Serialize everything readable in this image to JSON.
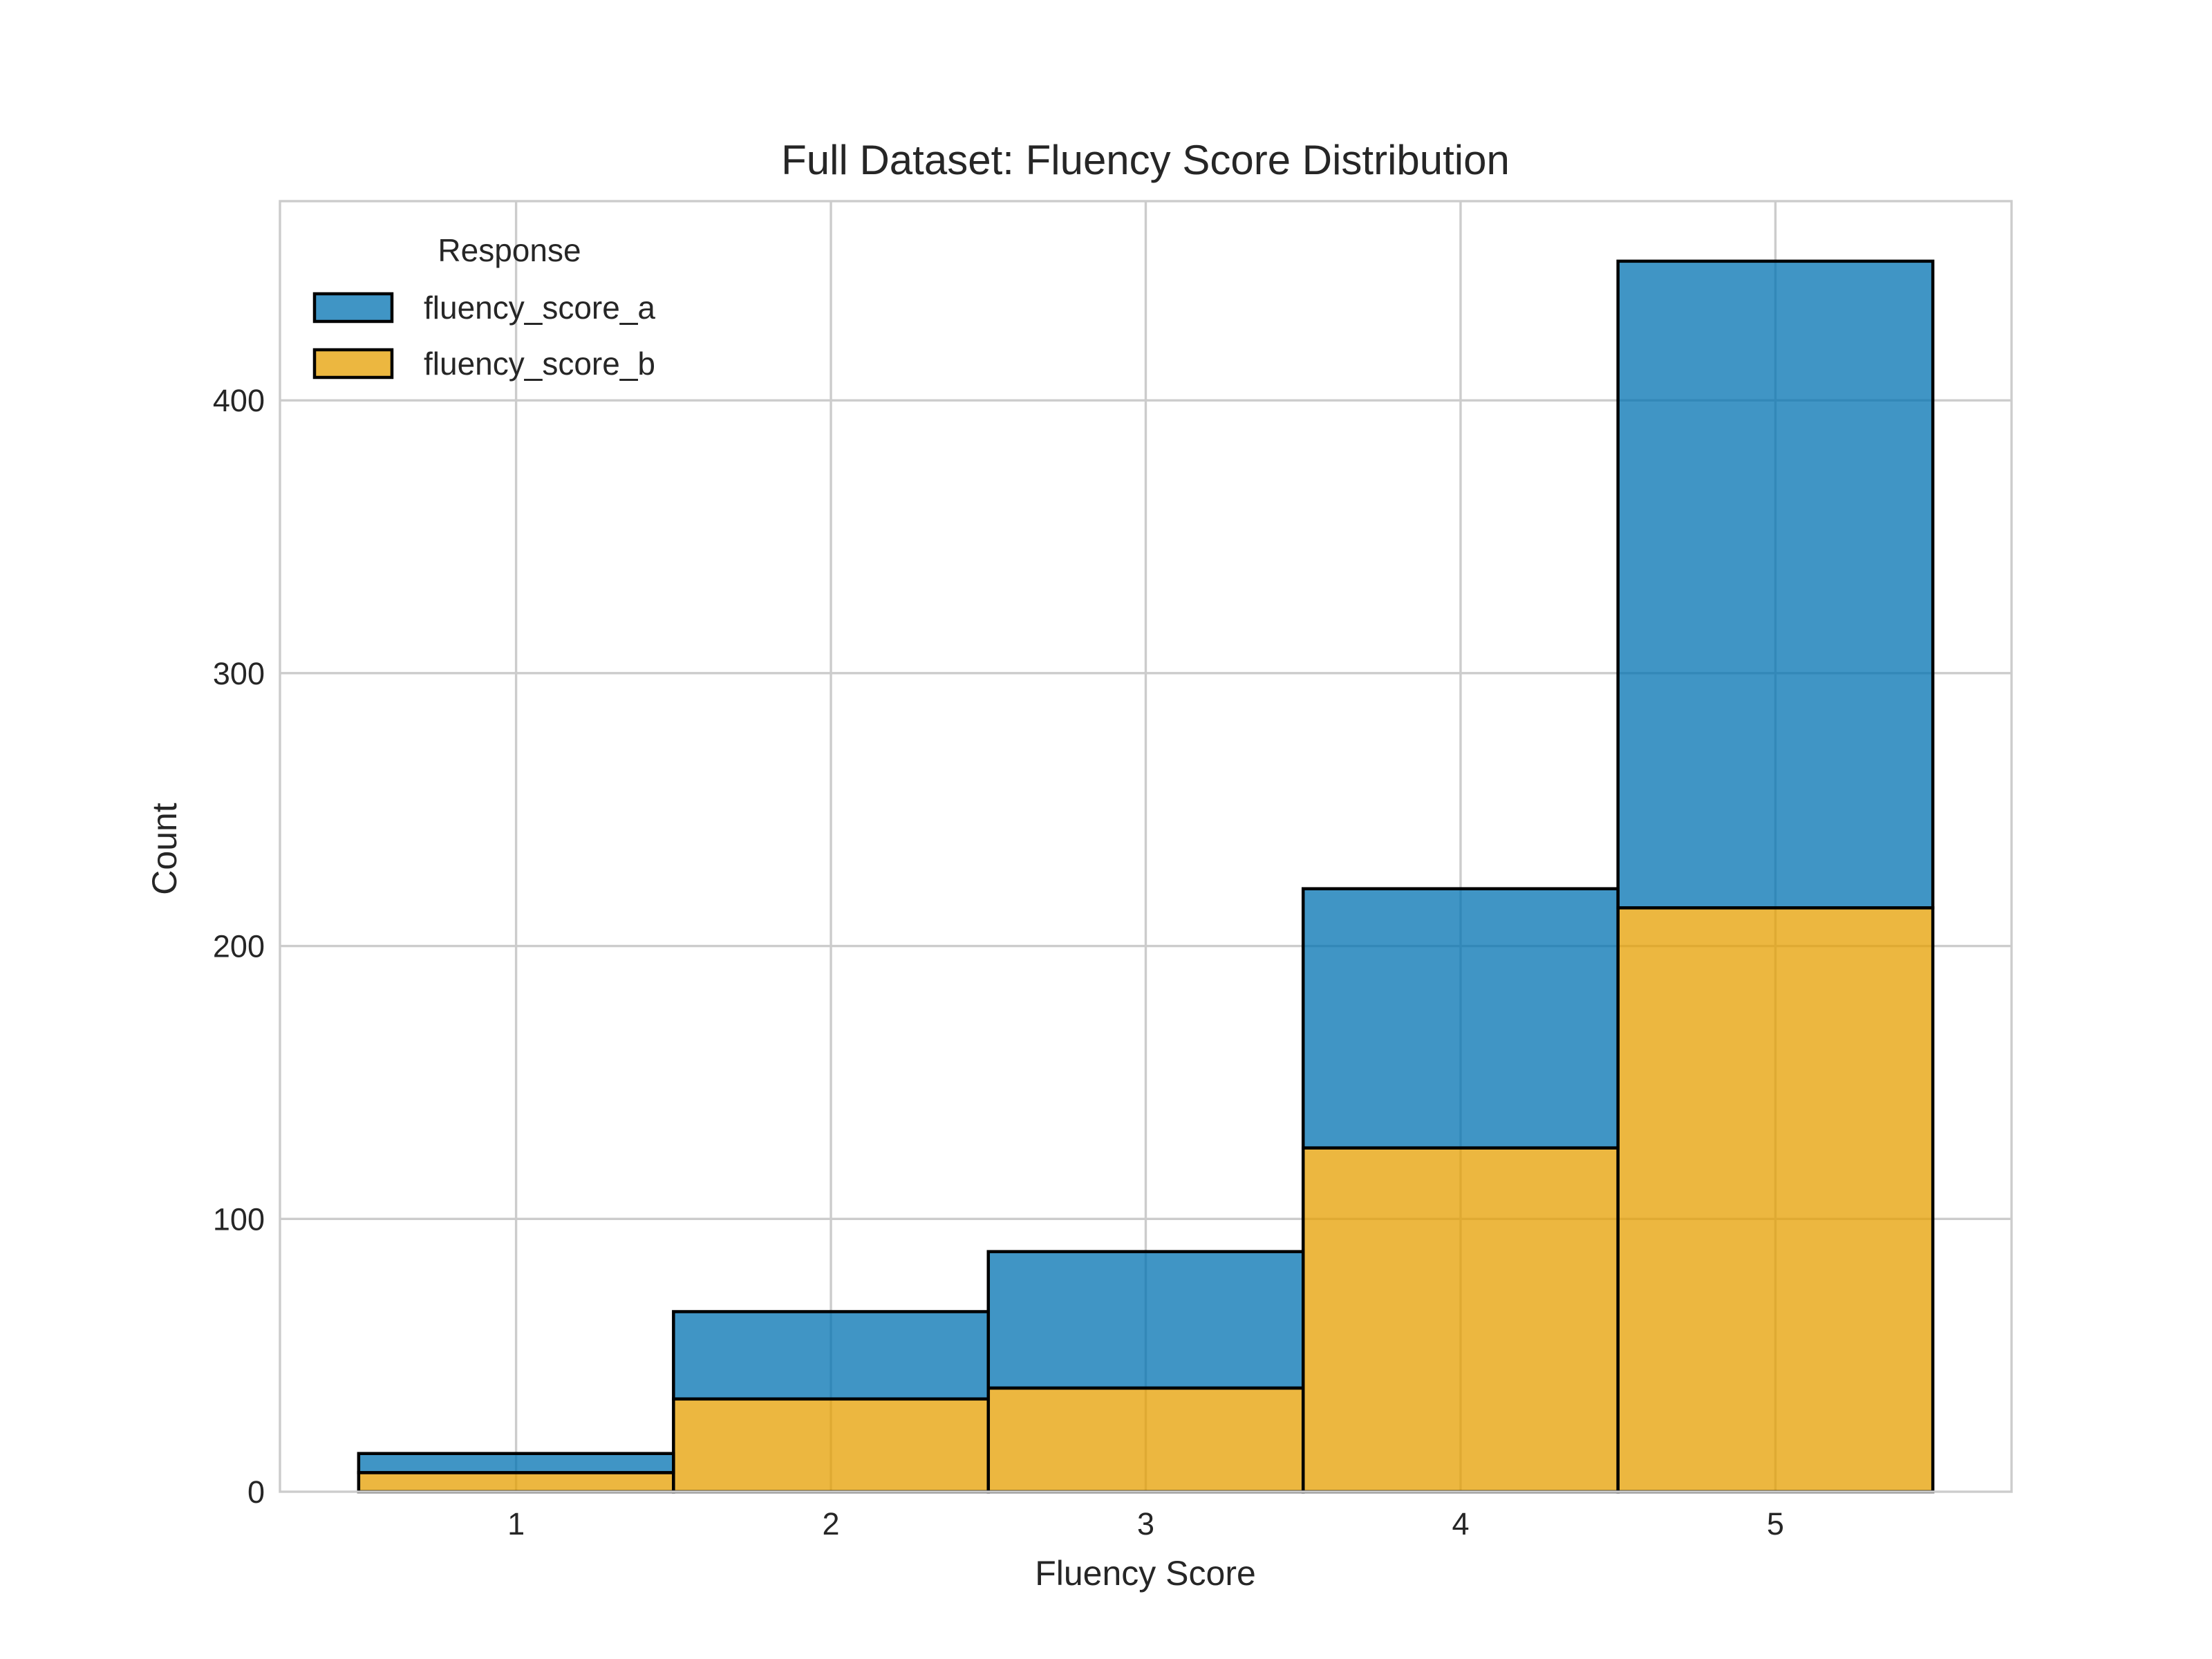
{
  "chart_data": {
    "type": "bar",
    "stacked": true,
    "title": "Full Dataset: Fluency Score Distribution",
    "xlabel": "Fluency Score",
    "ylabel": "Count",
    "categories": [
      "1",
      "2",
      "3",
      "4",
      "5"
    ],
    "xlim": [
      0.25,
      5.75
    ],
    "ylim": [
      0,
      473
    ],
    "yticks": [
      0,
      100,
      200,
      300,
      400
    ],
    "grid": true,
    "legend": {
      "title": "Response",
      "placement": "top-left"
    },
    "series": [
      {
        "name": "fluency_score_b",
        "color": "#E69F00",
        "values": [
          7,
          34,
          38,
          126,
          214
        ]
      },
      {
        "name": "fluency_score_a",
        "color": "#0072B2",
        "values": [
          7,
          32,
          50,
          95,
          237
        ]
      }
    ],
    "bar_opacity": 0.75,
    "legend_order": [
      "fluency_score_a",
      "fluency_score_b"
    ]
  }
}
